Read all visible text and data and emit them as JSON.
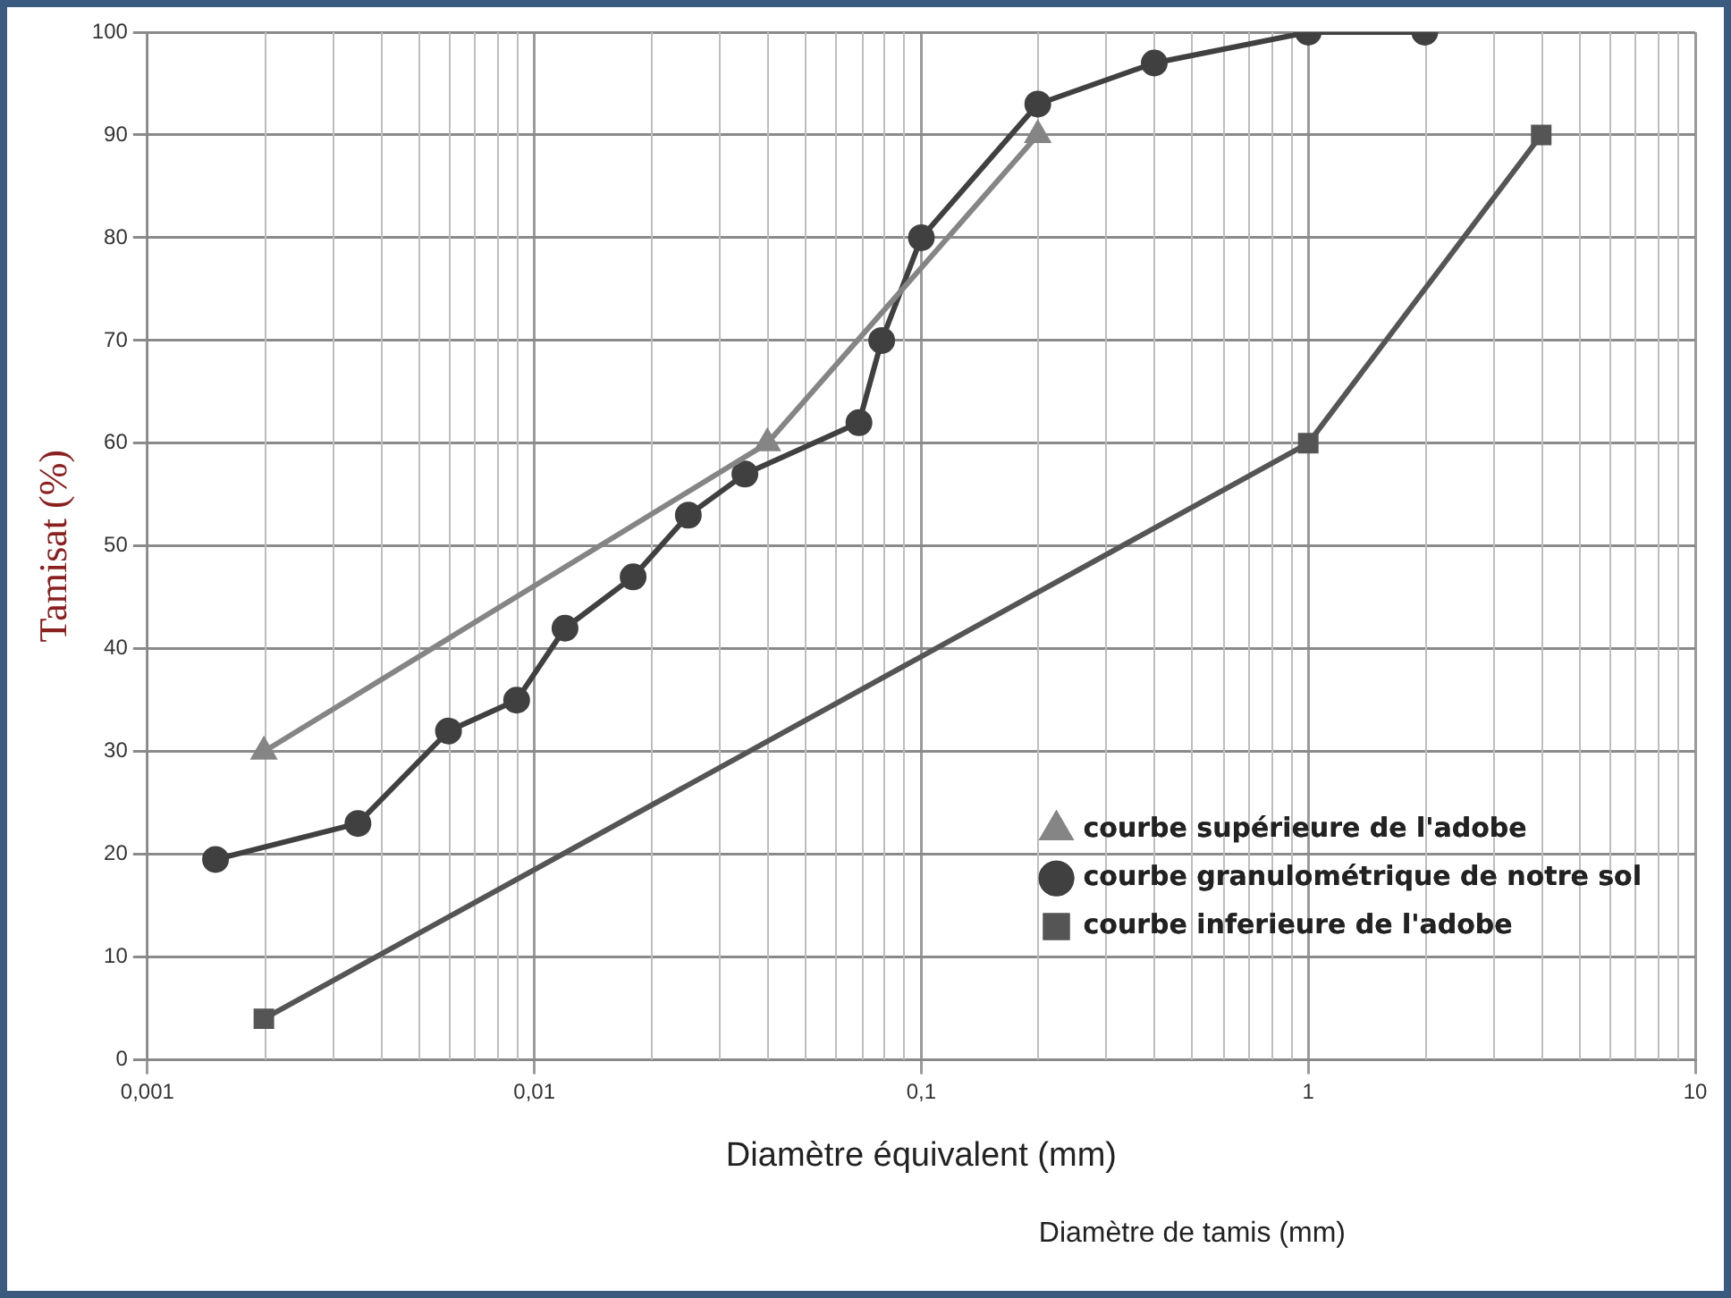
{
  "chart_data": {
    "type": "line",
    "xlabel": "Diamètre équivalent (mm)",
    "ylabel": "Tamisat (%)",
    "annotations": [
      "Diamètre de tamis (mm)"
    ],
    "log": "x",
    "xlim": [
      0.001,
      10
    ],
    "xticks": [
      {
        "value": 0.001,
        "label": "0,001"
      },
      {
        "value": 0.01,
        "label": "0,01"
      },
      {
        "value": 0.1,
        "label": "0,1"
      },
      1,
      10
    ],
    "ylim": [
      0,
      100
    ],
    "yticks": [
      0,
      10,
      20,
      30,
      40,
      50,
      60,
      70,
      80,
      90,
      100
    ],
    "grid": true,
    "legend": "bottom right",
    "series": [
      {
        "name": "courbe supérieure de l'adobe",
        "color": "#858585",
        "marker": "triangle",
        "x": [
          0.002,
          0.04,
          0.2
        ],
        "values": [
          30,
          60,
          90
        ]
      },
      {
        "name": "courbe granulométrique de notre sol",
        "color": "#404040",
        "marker": "circle",
        "x": [
          0.0015,
          0.0035,
          0.006,
          0.009,
          0.012,
          0.018,
          0.025,
          0.035,
          0.069,
          0.079,
          0.1,
          0.2,
          0.4,
          1,
          2
        ],
        "values": [
          19.5,
          23,
          32,
          35,
          42,
          47,
          53,
          57,
          62,
          70,
          80,
          93,
          97,
          100,
          100
        ]
      },
      {
        "name": "courbe inferieure de l'adobe",
        "color": "#555555",
        "marker": "square",
        "x": [
          0.002,
          1,
          4
        ],
        "values": [
          4,
          60,
          90
        ]
      }
    ]
  }
}
